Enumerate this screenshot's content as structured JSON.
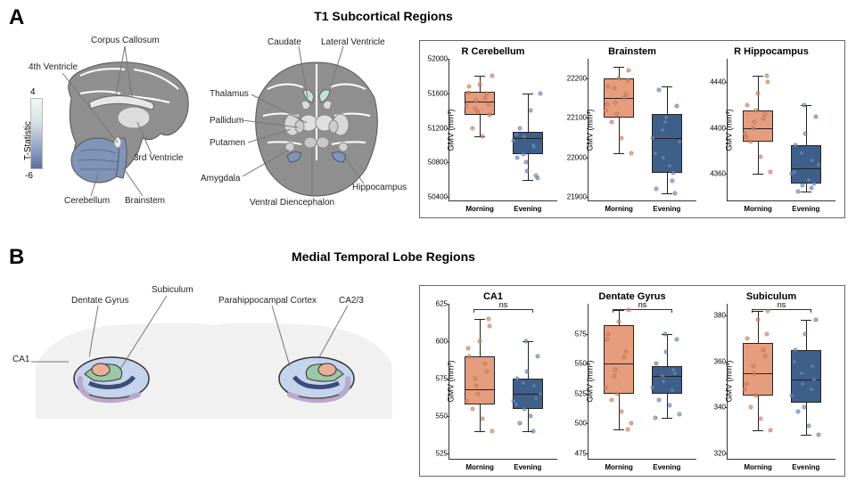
{
  "colors": {
    "morning_fill": "#e69d7e",
    "morning_pt": "#e08a66",
    "evening_fill": "#3e5f8a",
    "evening_pt": "#7a97c0",
    "box_border": "#222222",
    "chart_border": "#666666",
    "brain_gray": "#8f8f8f",
    "brain_dark": "#6b6b6b",
    "region_blue": "#8094b8",
    "region_teal": "#c5e0dc",
    "region_lilac": "#b8a9cc",
    "region_green": "#9ac7a5",
    "region_peach": "#e6b099",
    "region_navy": "#3a4d7a",
    "outline": "#333333"
  },
  "panelA": {
    "label": "A",
    "title": "T1 Subcortical Regions",
    "colorbar": {
      "title": "T-Statistic",
      "max": "4",
      "min": "-6"
    },
    "sagittal_labels": [
      "Corpus Callosum",
      "4th Ventricle",
      "3rd Ventricle",
      "Cerebellum",
      "Brainstem"
    ],
    "coronal_labels": [
      "Caudate",
      "Lateral Ventricle",
      "Thalamus",
      "Pallidum",
      "Putamen",
      "Amygdala",
      "Ventral Diencephalon",
      "Hippocampus"
    ],
    "charts": [
      {
        "title": "R Cerebellum",
        "ylabel": "GMV (mm³)",
        "ylim": [
          50400,
          52000
        ],
        "yticks": [
          50400,
          50800,
          51200,
          51600,
          52000
        ],
        "categories": [
          "Morning",
          "Evening"
        ],
        "boxes": [
          {
            "q1": 51350,
            "median": 51500,
            "q3": 51620,
            "wlo": 51100,
            "whi": 51800
          },
          {
            "q1": 50900,
            "median": 51080,
            "q3": 51150,
            "wlo": 50600,
            "whi": 51600
          }
        ],
        "points": [
          [
            51450,
            51520,
            51600,
            51680,
            51700,
            51350,
            51200,
            51100,
            51800,
            51420,
            51550,
            51610,
            51380,
            51470
          ],
          [
            51050,
            51100,
            50980,
            50850,
            50700,
            50620,
            51200,
            51400,
            51600,
            50900,
            51000,
            51120,
            50800,
            50650
          ]
        ]
      },
      {
        "title": "Brainstem",
        "ylabel": "GMV (mm³)",
        "ylim": [
          21900,
          22250
        ],
        "yticks": [
          21900,
          22000,
          22100,
          22200
        ],
        "categories": [
          "Morning",
          "Evening"
        ],
        "boxes": [
          {
            "q1": 22100,
            "median": 22150,
            "q3": 22200,
            "wlo": 22010,
            "whi": 22230
          },
          {
            "q1": 21960,
            "median": 22050,
            "q3": 22110,
            "wlo": 21910,
            "whi": 22180
          }
        ],
        "points": [
          [
            22120,
            22140,
            22160,
            22180,
            22200,
            22220,
            22090,
            22050,
            22010,
            22175,
            22150,
            22135,
            22110,
            22195
          ],
          [
            22050,
            22000,
            21960,
            21920,
            22100,
            22130,
            22170,
            21980,
            22040,
            22070,
            21940,
            22010,
            22090,
            21910
          ]
        ]
      },
      {
        "title": "R Hippocampus",
        "ylabel": "GMV (mm³)",
        "ylim": [
          4340,
          4460
        ],
        "yticks": [
          4360,
          4400,
          4440
        ],
        "categories": [
          "Morning",
          "Evening"
        ],
        "boxes": [
          {
            "q1": 4388,
            "median": 4400,
            "q3": 4415,
            "wlo": 4360,
            "whi": 4445
          },
          {
            "q1": 4352,
            "median": 4365,
            "q3": 4385,
            "wlo": 4345,
            "whi": 4420
          }
        ],
        "points": [
          [
            4395,
            4405,
            4412,
            4420,
            4430,
            4440,
            4388,
            4375,
            4362,
            4400,
            4408,
            4392,
            4415,
            4445
          ],
          [
            4360,
            4350,
            4372,
            4385,
            4395,
            4410,
            4345,
            4355,
            4368,
            4378,
            4348,
            4362,
            4420,
            4352
          ]
        ]
      }
    ]
  },
  "panelB": {
    "label": "B",
    "title": "Medial Temporal Lobe Regions",
    "labels": [
      "Dentate Gyrus",
      "Subiculum",
      "Parahippocampal Cortex",
      "CA2/3",
      "CA1"
    ],
    "charts": [
      {
        "title": "CA1",
        "sig": "ns",
        "ylabel": "GMV (mm³)",
        "ylim": [
          525,
          625
        ],
        "yticks": [
          525,
          550,
          575,
          600,
          625
        ],
        "categories": [
          "Morning",
          "Evening"
        ],
        "boxes": [
          {
            "q1": 558,
            "median": 568,
            "q3": 590,
            "wlo": 540,
            "whi": 615
          },
          {
            "q1": 555,
            "median": 565,
            "q3": 575,
            "wlo": 540,
            "whi": 600
          }
        ],
        "points": [
          [
            560,
            570,
            580,
            590,
            600,
            610,
            555,
            548,
            540,
            575,
            585,
            595,
            565,
            615
          ],
          [
            560,
            555,
            570,
            575,
            580,
            590,
            545,
            550,
            565,
            572,
            540,
            558,
            600,
            562
          ]
        ]
      },
      {
        "title": "Dentate Gyrus",
        "sig": "ns",
        "ylabel": "GMV (mm³)",
        "ylim": [
          475,
          600
        ],
        "yticks": [
          475,
          500,
          525,
          550,
          575
        ],
        "categories": [
          "Morning",
          "Evening"
        ],
        "boxes": [
          {
            "q1": 525,
            "median": 550,
            "q3": 582,
            "wlo": 495,
            "whi": 595
          },
          {
            "q1": 525,
            "median": 540,
            "q3": 548,
            "wlo": 505,
            "whi": 575
          }
        ],
        "points": [
          [
            530,
            545,
            560,
            575,
            585,
            595,
            520,
            510,
            500,
            540,
            555,
            570,
            525,
            495
          ],
          [
            530,
            535,
            545,
            550,
            560,
            570,
            520,
            515,
            508,
            540,
            528,
            505,
            575,
            542
          ]
        ]
      },
      {
        "title": "Subiculum",
        "sig": "ns",
        "ylabel": "GMV (mm³)",
        "ylim": [
          320,
          385
        ],
        "yticks": [
          320,
          340,
          360,
          380
        ],
        "categories": [
          "Morning",
          "Evening"
        ],
        "boxes": [
          {
            "q1": 345,
            "median": 355,
            "q3": 368,
            "wlo": 330,
            "whi": 382
          },
          {
            "q1": 342,
            "median": 352,
            "q3": 365,
            "wlo": 328,
            "whi": 378
          }
        ],
        "points": [
          [
            348,
            355,
            362,
            370,
            378,
            382,
            340,
            335,
            330,
            358,
            365,
            350,
            345,
            372
          ],
          [
            345,
            350,
            358,
            365,
            372,
            378,
            338,
            332,
            328,
            355,
            348,
            360,
            340,
            352
          ]
        ]
      }
    ]
  }
}
